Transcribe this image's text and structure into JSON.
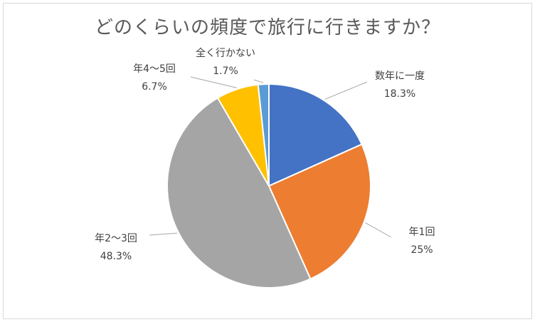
{
  "chart_data": {
    "type": "pie",
    "title": "どのくらいの頻度で旅行に行きますか？",
    "slices": [
      {
        "label": "数年に一度",
        "value": 18.3,
        "display": "18.3%",
        "color": "#4472C4"
      },
      {
        "label": "年1回",
        "value": 25,
        "display": "25%",
        "color": "#ED7D31"
      },
      {
        "label": "年2〜3回",
        "value": 48.3,
        "display": "48.3%",
        "color": "#A5A5A5"
      },
      {
        "label": "年4〜5回",
        "value": 6.7,
        "display": "6.7%",
        "color": "#FFC000"
      },
      {
        "label": "全く行かない",
        "value": 1.7,
        "display": "1.7%",
        "color": "#5B9BD5"
      }
    ],
    "start_angle": "12 o'clock",
    "direction": "clockwise",
    "legend": "none",
    "data_labels": "outside with leader lines"
  }
}
